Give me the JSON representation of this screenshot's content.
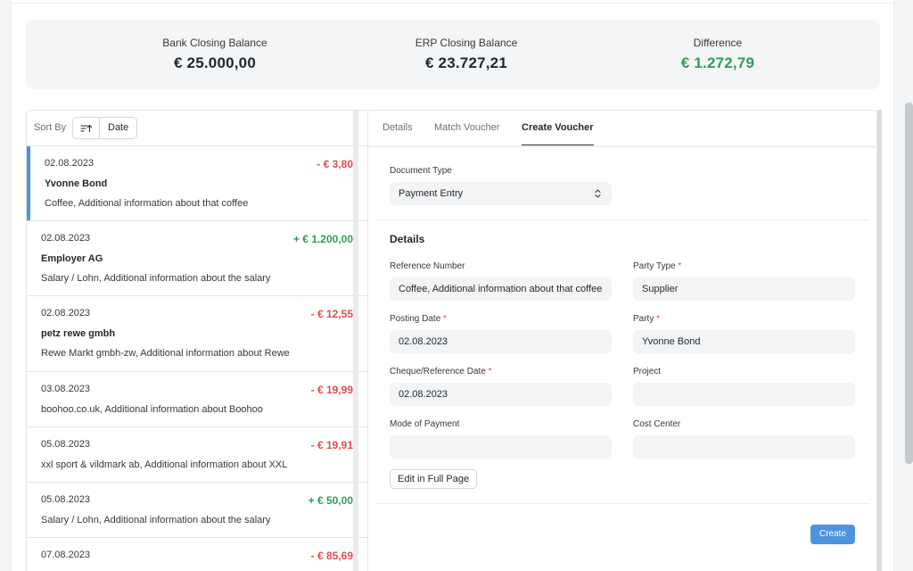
{
  "summary": {
    "bank_label": "Bank Closing Balance",
    "bank_value": "€ 25.000,00",
    "erp_label": "ERP Closing Balance",
    "erp_value": "€ 23.727,21",
    "diff_label": "Difference",
    "diff_value": "€ 1.272,79"
  },
  "sort": {
    "label": "Sort By",
    "field": "Date",
    "icon": "sort-ascending-icon"
  },
  "transactions": [
    {
      "date": "02.08.2023",
      "amount": "- € 3,80",
      "sign": "neg",
      "party": "Yvonne Bond",
      "description": "Coffee, Additional information about that coffee",
      "active": true
    },
    {
      "date": "02.08.2023",
      "amount": "+ € 1.200,00",
      "sign": "pos",
      "party": "Employer AG",
      "description": "Salary / Lohn, Additional information about the salary"
    },
    {
      "date": "02.08.2023",
      "amount": "- € 12,55",
      "sign": "neg",
      "party": "petz rewe gmbh",
      "description": "Rewe Markt gmbh-zw, Additional information about Rewe"
    },
    {
      "date": "03.08.2023",
      "amount": "- € 19,99",
      "sign": "neg",
      "party": "",
      "description": "boohoo.co.uk, Additional information about Boohoo"
    },
    {
      "date": "05.08.2023",
      "amount": "- € 19,91",
      "sign": "neg",
      "party": "",
      "description": "xxl sport & vildmark ab, Additional information about XXL"
    },
    {
      "date": "05.08.2023",
      "amount": "+ € 50,00",
      "sign": "pos",
      "party": "",
      "description": "Salary / Lohn, Additional information about the salary"
    },
    {
      "date": "07.08.2023",
      "amount": "- € 85,69",
      "sign": "neg",
      "party": "",
      "description": ""
    }
  ],
  "tabs": {
    "details": "Details",
    "match": "Match Voucher",
    "create": "Create Voucher",
    "active": "create"
  },
  "form": {
    "document_type_label": "Document Type",
    "document_type_value": "Payment Entry",
    "section_title": "Details",
    "reference_number_label": "Reference Number",
    "reference_number_value": "Coffee, Additional information about that coffee",
    "party_type_label": "Party Type",
    "party_type_value": "Supplier",
    "posting_date_label": "Posting Date",
    "posting_date_value": "02.08.2023",
    "party_label": "Party",
    "party_value": "Yvonne Bond",
    "cheque_date_label": "Cheque/Reference Date",
    "cheque_date_value": "02.08.2023",
    "project_label": "Project",
    "project_value": "",
    "mode_of_payment_label": "Mode of Payment",
    "mode_of_payment_value": "",
    "cost_center_label": "Cost Center",
    "cost_center_value": "",
    "required_mark": "*",
    "edit_full_page_label": "Edit in Full Page",
    "create_label": "Create"
  },
  "colors": {
    "accent": "#4d93e0",
    "positive": "#2f9d58",
    "negative": "#e24c4c"
  }
}
